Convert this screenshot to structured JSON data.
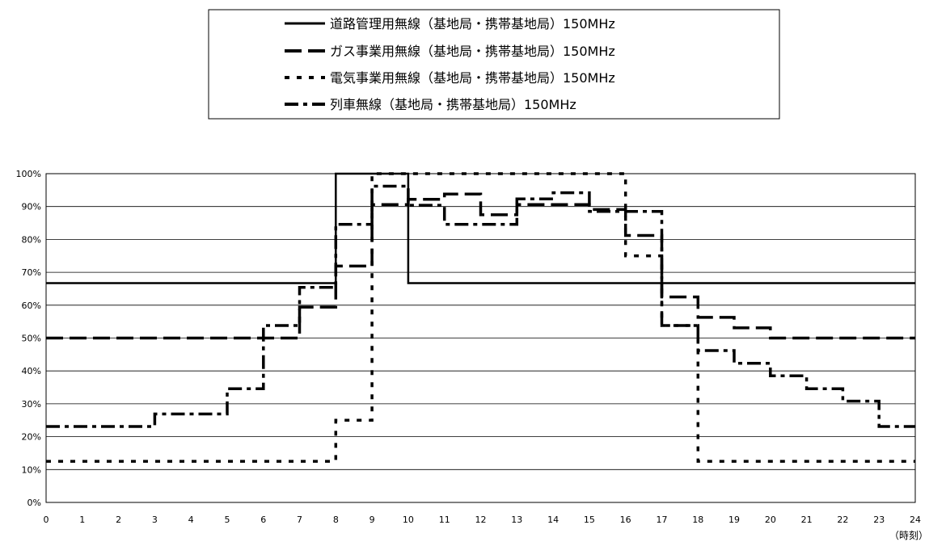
{
  "chart_data": {
    "type": "line",
    "step": true,
    "title": "",
    "xlabel": "",
    "ylabel": "",
    "x_unit_label": "（時刻）",
    "xlim": [
      0,
      24
    ],
    "ylim": [
      0,
      100
    ],
    "x_ticks": [
      "0",
      "1",
      "2",
      "3",
      "4",
      "5",
      "6",
      "7",
      "8",
      "9",
      "10",
      "11",
      "12",
      "13",
      "14",
      "15",
      "16",
      "17",
      "18",
      "19",
      "20",
      "21",
      "22",
      "23",
      "24"
    ],
    "y_ticks": [
      "0%",
      "10%",
      "20%",
      "30%",
      "40%",
      "50%",
      "60%",
      "70%",
      "80%",
      "90%",
      "100%"
    ],
    "grid": "horizontal",
    "legend_position": "top-center",
    "hours": [
      0,
      1,
      2,
      3,
      4,
      5,
      6,
      7,
      8,
      9,
      10,
      11,
      12,
      13,
      14,
      15,
      16,
      17,
      18,
      19,
      20,
      21,
      22,
      23
    ],
    "series": [
      {
        "name": "道路管理用無線（基地局・携帯基地局）150MHz",
        "style": "solid",
        "color": "#000000",
        "values": [
          66.7,
          66.7,
          66.7,
          66.7,
          66.7,
          66.7,
          66.7,
          66.7,
          100,
          100,
          66.7,
          66.7,
          66.7,
          66.7,
          66.7,
          66.7,
          66.7,
          66.7,
          66.7,
          66.7,
          66.7,
          66.7,
          66.7,
          66.7
        ]
      },
      {
        "name": "ガス事業用無線（基地局・携帯基地局）150MHz",
        "style": "dash",
        "color": "#000000",
        "values": [
          50,
          50,
          50,
          50,
          50,
          50,
          50,
          59.4,
          71.9,
          90.6,
          92.2,
          93.8,
          87.5,
          90.6,
          90.6,
          89.1,
          81.2,
          62.5,
          56.3,
          53.1,
          50,
          50,
          50,
          50
        ]
      },
      {
        "name": "電気事業用無線（基地局・携帯基地局）150MHz",
        "style": "dot",
        "color": "#000000",
        "values": [
          12.5,
          12.5,
          12.5,
          12.5,
          12.5,
          12.5,
          12.5,
          12.5,
          25,
          100,
          100,
          100,
          100,
          100,
          100,
          100,
          75,
          53.8,
          12.5,
          12.5,
          12.5,
          12.5,
          12.5,
          12.5
        ]
      },
      {
        "name": "列車無線（基地局・携帯基地局）150MHz",
        "style": "dashdot",
        "color": "#000000",
        "values": [
          23.1,
          23.1,
          23.1,
          26.9,
          26.9,
          34.6,
          53.8,
          65.4,
          84.6,
          96.2,
          90.4,
          84.6,
          84.6,
          92.3,
          94.2,
          88.5,
          88.5,
          53.8,
          46.2,
          42.3,
          38.5,
          34.6,
          30.8,
          23.1
        ]
      }
    ]
  }
}
